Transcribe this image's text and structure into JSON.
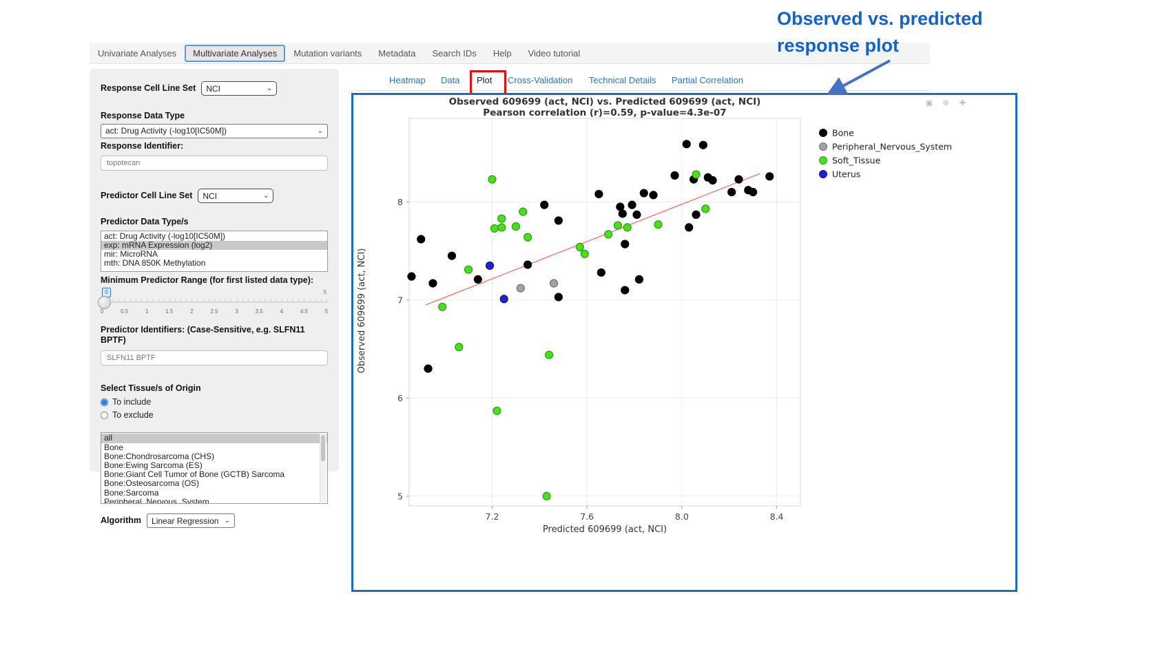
{
  "top_nav": {
    "tabs": [
      {
        "label": "Univariate Analyses",
        "active": false
      },
      {
        "label": "Multivariate Analyses",
        "active": true
      },
      {
        "label": "Mutation variants",
        "active": false
      },
      {
        "label": "Metadata",
        "active": false
      },
      {
        "label": "Search IDs",
        "active": false
      },
      {
        "label": "Help",
        "active": false
      },
      {
        "label": "Video tutorial",
        "active": false
      }
    ]
  },
  "subtabs": [
    {
      "label": "Heatmap",
      "active": false
    },
    {
      "label": "Data",
      "active": false
    },
    {
      "label": "Plot",
      "active": true
    },
    {
      "label": "Cross-Validation",
      "active": false
    },
    {
      "label": "Technical Details",
      "active": false
    },
    {
      "label": "Partial Correlation",
      "active": false
    }
  ],
  "sidebar": {
    "response_cell_line_set": {
      "label": "Response Cell Line Set",
      "value": "NCI"
    },
    "response_data_type": {
      "label": "Response Data Type",
      "value": "act: Drug Activity (-log10[IC50M])"
    },
    "response_identifier": {
      "label": "Response Identifier:",
      "value": "topotecan"
    },
    "predictor_cell_line_set": {
      "label": "Predictor Cell Line Set",
      "value": "NCI"
    },
    "predictor_data_types": {
      "label": "Predictor Data Type/s",
      "options": [
        "act: Drug Activity (-log10[IC50M])",
        "exp: mRNA Expression (log2)",
        "mir: MicroRNA",
        "mth: DNA 850K Methylation"
      ],
      "selected": "exp: mRNA Expression (log2)"
    },
    "min_predictor_range": {
      "label": "Minimum Predictor Range (for first listed data type):",
      "value": "0",
      "max_label": "5",
      "tick_labels": [
        "0",
        "0.5",
        "1",
        "1.5",
        "2",
        "2.5",
        "3",
        "3.5",
        "4",
        "4.5",
        "5"
      ]
    },
    "predictor_identifiers": {
      "label": "Predictor Identifiers: (Case-Sensitive, e.g. SLFN11 BPTF)",
      "value": "SLFN11 BPTF"
    },
    "tissue_origin": {
      "label": "Select Tissue/s of Origin",
      "radios": [
        {
          "label": "To include",
          "selected": true
        },
        {
          "label": "To exclude",
          "selected": false
        }
      ],
      "options": [
        "all",
        "Bone",
        "Bone:Chondrosarcoma (CHS)",
        "Bone:Ewing Sarcoma (ES)",
        "Bone:Giant Cell Tumor of Bone (GCTB) Sarcoma",
        "Bone:Osteosarcoma (OS)",
        "Bone:Sarcoma",
        "Peripheral_Nervous_System"
      ],
      "selected": "all"
    },
    "algorithm": {
      "label": "Algorithm",
      "value": "Linear Regression"
    }
  },
  "annotation": {
    "line1": "Observed  vs. predicted",
    "line2": "response plot",
    "color": "#1262cc",
    "arrow_color": "#4472c4"
  },
  "chart_data": {
    "type": "scatter",
    "title": "Observed 609699 (act, NCI) vs. Predicted 609699 (act, NCI)",
    "subtitle": "Pearson correlation (r)=0.59, p-value=4.3e-07",
    "xlabel": "Predicted 609699 (act, NCI)",
    "ylabel": "Observed 609699 (act, NCI)",
    "xlim": [
      6.85,
      8.5
    ],
    "ylim": [
      4.9,
      8.88
    ],
    "xticks": [
      "7.2",
      "7.6",
      "8.0",
      "8.4"
    ],
    "yticks": [
      "5",
      "6",
      "7",
      "8"
    ],
    "grid": true,
    "legend_position": "right-top-outside",
    "trend_line": {
      "color": "#f0685e",
      "x1": 6.92,
      "y1": 6.95,
      "x2": 8.33,
      "y2": 8.29
    },
    "series": [
      {
        "name": "Bone",
        "color": "#000000",
        "stroke": "#000000",
        "points": [
          [
            6.9,
            7.62
          ],
          [
            7.03,
            7.45
          ],
          [
            6.86,
            7.24
          ],
          [
            6.95,
            7.17
          ],
          [
            7.14,
            7.21
          ],
          [
            7.35,
            7.36
          ],
          [
            7.48,
            7.03
          ],
          [
            7.42,
            7.97
          ],
          [
            7.48,
            7.81
          ],
          [
            7.65,
            8.08
          ],
          [
            7.66,
            7.28
          ],
          [
            7.74,
            7.95
          ],
          [
            7.79,
            7.97
          ],
          [
            7.75,
            7.88
          ],
          [
            7.81,
            7.87
          ],
          [
            7.76,
            7.57
          ],
          [
            7.76,
            7.1
          ],
          [
            7.82,
            7.21
          ],
          [
            7.84,
            8.09
          ],
          [
            7.88,
            8.07
          ],
          [
            7.97,
            8.27
          ],
          [
            8.02,
            8.59
          ],
          [
            8.09,
            8.58
          ],
          [
            8.05,
            8.23
          ],
          [
            8.11,
            8.25
          ],
          [
            8.13,
            8.22
          ],
          [
            8.24,
            8.23
          ],
          [
            8.21,
            8.1
          ],
          [
            8.28,
            8.12
          ],
          [
            8.3,
            8.1
          ],
          [
            8.06,
            7.87
          ],
          [
            8.03,
            7.74
          ],
          [
            8.37,
            8.26
          ],
          [
            6.93,
            6.3
          ]
        ]
      },
      {
        "name": "Peripheral_Nervous_System",
        "color": "#a3a3a3",
        "stroke": "#6e6e6e",
        "points": [
          [
            7.32,
            7.12
          ],
          [
            7.46,
            7.17
          ]
        ]
      },
      {
        "name": "Soft_Tissue",
        "color": "#4ade1e",
        "stroke": "#2c9e0e",
        "points": [
          [
            7.2,
            8.23
          ],
          [
            8.06,
            8.28
          ],
          [
            8.1,
            7.93
          ],
          [
            7.33,
            7.9
          ],
          [
            7.24,
            7.83
          ],
          [
            7.21,
            7.73
          ],
          [
            7.24,
            7.74
          ],
          [
            7.3,
            7.75
          ],
          [
            7.35,
            7.64
          ],
          [
            7.1,
            7.31
          ],
          [
            7.57,
            7.54
          ],
          [
            7.59,
            7.47
          ],
          [
            7.69,
            7.67
          ],
          [
            7.73,
            7.76
          ],
          [
            7.77,
            7.74
          ],
          [
            7.9,
            7.77
          ],
          [
            6.99,
            6.93
          ],
          [
            7.06,
            6.52
          ],
          [
            7.44,
            6.44
          ],
          [
            7.22,
            5.87
          ],
          [
            7.43,
            5.0
          ]
        ]
      },
      {
        "name": "Uterus",
        "color": "#2121cc",
        "stroke": "#1111a0",
        "points": [
          [
            7.19,
            7.35
          ],
          [
            7.25,
            7.01
          ]
        ]
      }
    ]
  }
}
